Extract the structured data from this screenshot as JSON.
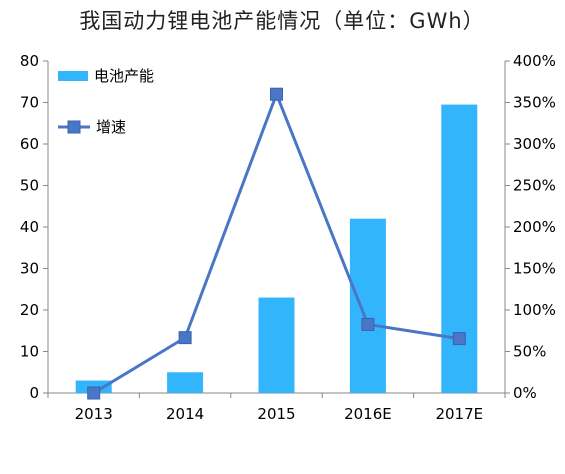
{
  "chart_data": {
    "type": "bar+line",
    "title": "我国动力锂电池产能情况（单位：GWh）",
    "categories": [
      "2013",
      "2014",
      "2015",
      "2016E",
      "2017E"
    ],
    "series": [
      {
        "name": "电池产能",
        "type": "bar",
        "axis": "left",
        "color": "#33b5fc",
        "values": [
          3,
          5,
          23,
          42,
          69.5
        ]
      },
      {
        "name": "增速",
        "type": "line",
        "axis": "right",
        "color": "#4a76c8",
        "marker_color": "#4a76c8",
        "values": [
          0,
          66.7,
          360,
          82.6,
          65.5
        ]
      }
    ],
    "y_left": {
      "min": 0,
      "max": 80,
      "step": 10,
      "ticks": [
        "0",
        "10",
        "20",
        "30",
        "40",
        "50",
        "60",
        "70",
        "80"
      ]
    },
    "y_right": {
      "min": 0,
      "max": 400,
      "step": 50,
      "unit": "%",
      "ticks": [
        "0%",
        "50%",
        "100%",
        "150%",
        "200%",
        "250%",
        "300%",
        "350%",
        "400%"
      ]
    },
    "grid": false,
    "legend_position": "top-left"
  }
}
